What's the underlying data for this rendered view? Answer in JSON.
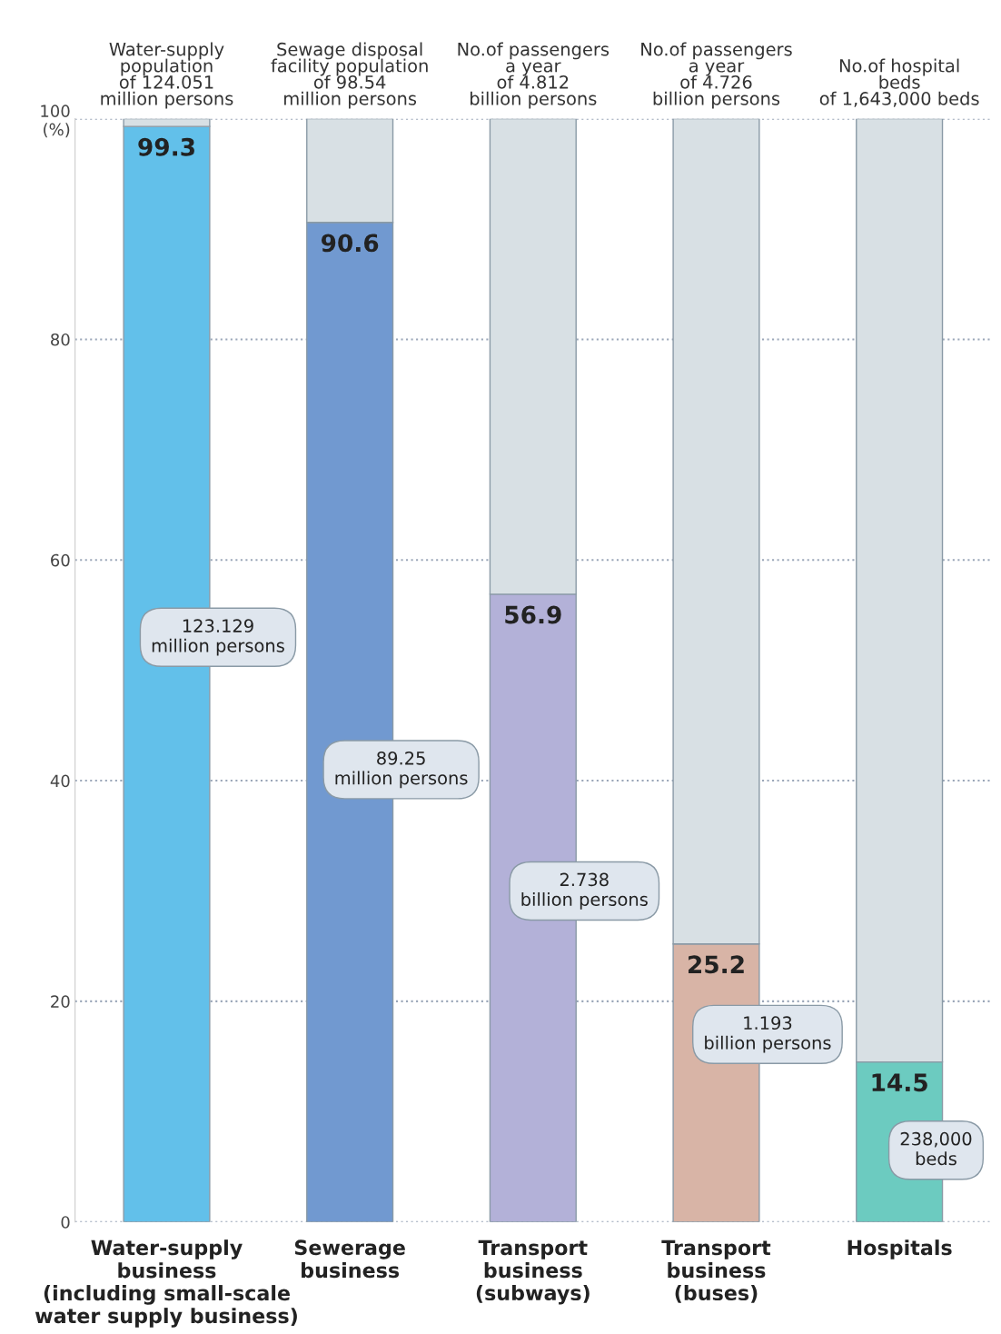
{
  "chart_data": {
    "type": "bar",
    "stacked": true,
    "categories": [
      "Water-supply\nbusiness\n(including small-scale\nwater supply business)",
      "Sewerage\nbusiness",
      "Transport\nbusiness\n(subways)",
      "Transport\nbusiness\n(buses)",
      "Hospitals"
    ],
    "series": [
      {
        "colors": [
          "#62c0ea",
          "#7199d0",
          "#b3b1d8",
          "#d8b4a6",
          "#6ccbc0"
        ],
        "values": [
          99.3,
          90.6,
          56.9,
          25.2,
          14.5
        ],
        "value_labels": [
          "99.3",
          "90.6",
          "56.9",
          "25.2",
          "14.5"
        ]
      },
      {
        "color": "#d8e0e4",
        "values": [
          0.7,
          9.4,
          43.1,
          74.8,
          85.5
        ]
      }
    ],
    "ylim": [
      0,
      100
    ],
    "yticks": [
      0,
      20,
      40,
      60,
      80,
      {
        "value": 100,
        "label": "100\n(%)"
      }
    ],
    "grid": "y",
    "annotations": [
      "Water-supply\npopulation\nof 124.051\nmillion persons",
      "Sewage disposal\nfacility population\nof 98.54\nmillion persons",
      "No.of passengers\na year\nof 4.812\nbillion persons",
      "No.of passengers\na year\nof 4.726\nbillion persons",
      "No.of hospital\nbeds\nof 1,643,000 beds",
      "123.129\nmillion persons",
      "89.25\nmillion persons",
      "2.738\nbillion persons",
      "1.193\nbillion persons",
      "238,000\nbeds"
    ]
  }
}
